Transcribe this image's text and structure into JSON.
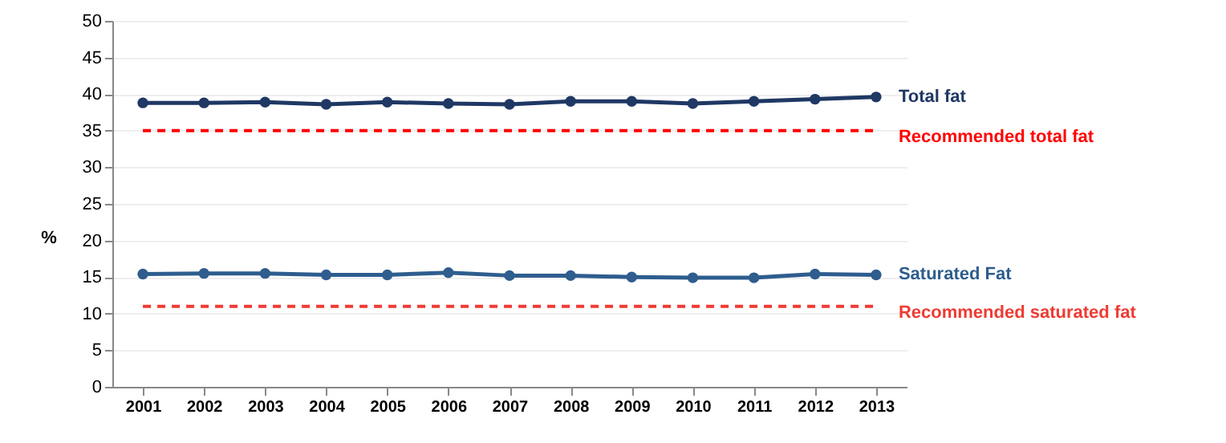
{
  "chart_data": {
    "type": "line",
    "categories": [
      "2001",
      "2002",
      "2003",
      "2004",
      "2005",
      "2006",
      "2007",
      "2008",
      "2009",
      "2010",
      "2011",
      "2012",
      "2013"
    ],
    "series": [
      {
        "name": "Total fat",
        "color": "#1f3864",
        "values": [
          38.8,
          38.8,
          38.9,
          38.6,
          38.9,
          38.7,
          38.6,
          39.0,
          39.0,
          38.7,
          39.0,
          39.3,
          39.6
        ]
      },
      {
        "name": "Saturated Fat",
        "color": "#2e5d8e",
        "values": [
          15.4,
          15.5,
          15.5,
          15.3,
          15.3,
          15.6,
          15.2,
          15.2,
          15.0,
          14.9,
          14.9,
          15.4,
          15.3
        ]
      }
    ],
    "ref_lines": [
      {
        "axis": "y",
        "value": 35,
        "label": "Recommended total fat",
        "color": "#ff0000",
        "line_style": "dashed"
      },
      {
        "axis": "y",
        "value": 11,
        "label": "Recommended saturated fat",
        "color": "#ee3b33",
        "line_style": "dashed"
      }
    ],
    "ylabel": "%",
    "ylim": [
      0,
      50
    ],
    "yticks": [
      0,
      5,
      10,
      15,
      20,
      25,
      30,
      35,
      40,
      45,
      50
    ],
    "grid": "y",
    "marker": "circle",
    "line_style": "solid"
  }
}
